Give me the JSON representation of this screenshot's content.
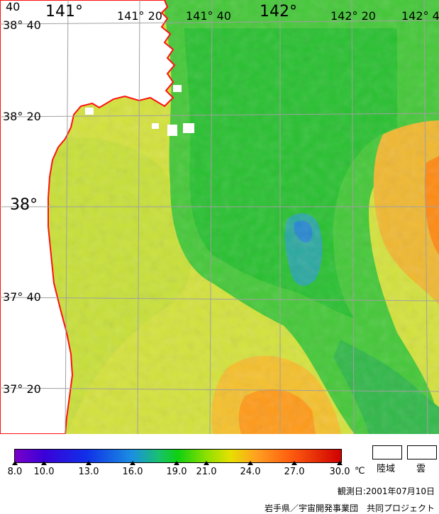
{
  "map": {
    "lat_labels": [
      {
        "text": "38° 40",
        "style": "small"
      },
      {
        "text": "38° 20",
        "style": "small"
      },
      {
        "text": "38°",
        "style": "big"
      },
      {
        "text": "37° 40",
        "style": "small"
      },
      {
        "text": "37° 20",
        "style": "small"
      }
    ],
    "lon_labels": [
      {
        "text": "141°",
        "style": "big"
      },
      {
        "text": "141° 20",
        "style": "small"
      },
      {
        "text": "141° 40",
        "style": "small"
      },
      {
        "text": "142°",
        "style": "big"
      },
      {
        "text": "142° 20",
        "style": "small"
      },
      {
        "text": "142° 4",
        "style": "small"
      }
    ],
    "corner_label": "40",
    "colors": {
      "land": "#ffffff",
      "coast": "#ff1010",
      "grid": "#a0a0a0",
      "sea_warm_yellow": "#d8e040",
      "sea_green": "#30c030",
      "sea_blue": "#30a0c0",
      "sea_orange": "#ff9020"
    }
  },
  "legend": {
    "ticks": [
      "8.0",
      "10.0",
      "13.0",
      "16.0",
      "19.0",
      "21.0",
      "24.0",
      "27.0",
      "30.0"
    ],
    "unit": "℃",
    "land_label": "陸域",
    "cloud_label": "雲",
    "observation_date": "観測日:2001年07月10日",
    "credit": "岩手県／宇宙開発事業団　共同プロジェクト"
  }
}
